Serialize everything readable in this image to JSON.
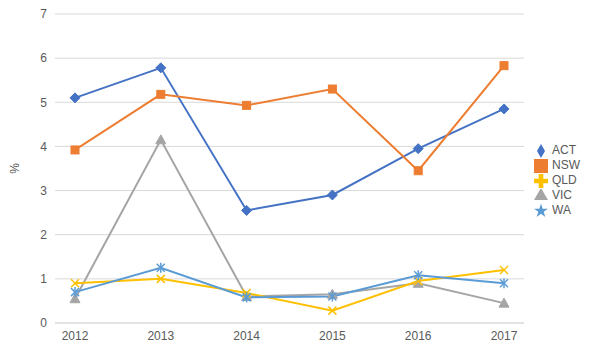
{
  "chart_data": {
    "type": "line",
    "ylabel": "%",
    "categories": [
      "2012",
      "2013",
      "2014",
      "2015",
      "2016",
      "2017"
    ],
    "series": [
      {
        "name": "ACT",
        "color": "#4472c4",
        "marker": "diamond",
        "values": [
          5.1,
          5.78,
          2.55,
          2.9,
          3.95,
          4.85
        ]
      },
      {
        "name": "NSW",
        "color": "#ed7d31",
        "marker": "square",
        "values": [
          3.92,
          5.18,
          4.93,
          5.3,
          3.45,
          5.83
        ]
      },
      {
        "name": "VIC",
        "color": "#a5a5a5",
        "marker": "triangle",
        "values": [
          0.55,
          4.15,
          0.6,
          0.65,
          0.9,
          0.45
        ]
      },
      {
        "name": "QLD",
        "color": "#ffc000",
        "marker": "x",
        "values": [
          0.9,
          1.0,
          0.68,
          0.28,
          0.95,
          1.2
        ]
      },
      {
        "name": "WA",
        "color": "#5b9bd5",
        "marker": "star",
        "values": [
          0.7,
          1.25,
          0.58,
          0.6,
          1.08,
          0.9
        ]
      }
    ],
    "ylim": [
      0,
      7
    ],
    "yticks": [
      0,
      1,
      2,
      3,
      4,
      5,
      6,
      7
    ],
    "grid": true,
    "legend": "right"
  }
}
